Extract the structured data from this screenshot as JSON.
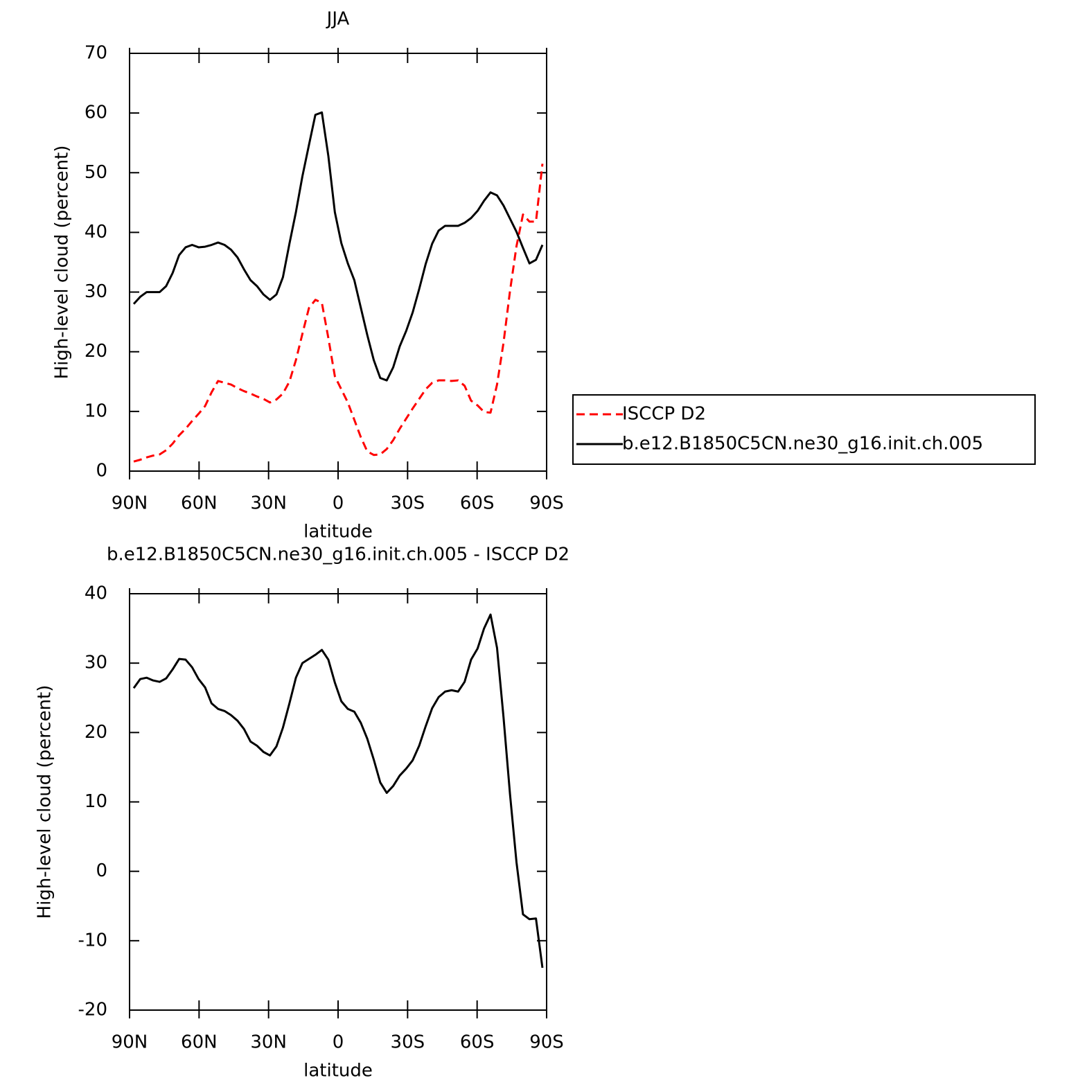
{
  "chart_data": [
    {
      "type": "line",
      "title": "JJA",
      "xlabel": "latitude",
      "ylabel": "High-level cloud (percent)",
      "x": [
        88.2,
        85.4,
        82.6,
        79.8,
        77.0,
        74.2,
        71.4,
        68.6,
        65.8,
        63.0,
        60.2,
        57.4,
        54.6,
        51.8,
        49.0,
        46.2,
        43.4,
        40.6,
        37.8,
        35.0,
        32.2,
        29.4,
        26.6,
        23.8,
        21.0,
        18.2,
        15.4,
        12.6,
        9.8,
        7.0,
        4.2,
        1.4,
        -1.4,
        -4.2,
        -7.0,
        -9.8,
        -12.6,
        -15.4,
        -18.2,
        -21.0,
        -23.8,
        -26.6,
        -29.4,
        -32.2,
        -35.0,
        -37.8,
        -40.6,
        -43.4,
        -46.2,
        -49.0,
        -51.8,
        -54.6,
        -57.4,
        -60.2,
        -63.0,
        -65.8,
        -68.6,
        -71.4,
        -74.2,
        -77.0,
        -79.8,
        -82.6,
        -85.4,
        -88.2
      ],
      "xlim": [
        90,
        -90
      ],
      "xticks": [
        {
          "value": 90,
          "label": "90N"
        },
        {
          "value": 60,
          "label": "60N"
        },
        {
          "value": 30,
          "label": "30N"
        },
        0,
        {
          "value": -30,
          "label": "30S"
        },
        {
          "value": -60,
          "label": "60S"
        },
        {
          "value": -90,
          "label": "90S"
        }
      ],
      "ylim": [
        0,
        70
      ],
      "yticks": [
        0,
        10,
        20,
        30,
        40,
        50,
        60,
        70
      ],
      "legend": "right",
      "series": [
        {
          "name": "ISCCP D2",
          "color": "#ff0000",
          "dashed": true,
          "values": [
            1.6,
            1.9,
            2.3,
            2.6,
            2.8,
            3.5,
            4.6,
            6.0,
            7.1,
            8.4,
            9.6,
            10.9,
            13.2,
            15.1,
            14.8,
            14.5,
            13.9,
            13.4,
            13.0,
            12.5,
            12.1,
            11.5,
            12.0,
            13.0,
            15.0,
            18.6,
            23.0,
            27.3,
            28.7,
            28.2,
            22.3,
            15.9,
            13.7,
            11.5,
            8.6,
            5.7,
            3.3,
            2.7,
            2.8,
            3.7,
            5.2,
            7.1,
            8.8,
            10.5,
            12.1,
            13.7,
            14.8,
            15.2,
            15.2,
            15.1,
            15.2,
            14.3,
            11.8,
            11.0,
            9.9,
            9.8,
            14.5,
            21.5,
            30.2,
            37.7,
            43.0,
            41.8,
            41.8,
            51.5
          ]
        },
        {
          "name": "b.e12.B1850C5CN.ne30_g16.init.ch.005",
          "color": "#000000",
          "dashed": false,
          "values": [
            28.0,
            29.2,
            30.0,
            30.0,
            30.0,
            31.0,
            33.2,
            36.2,
            37.5,
            37.9,
            37.5,
            37.6,
            37.9,
            38.3,
            37.9,
            37.1,
            35.8,
            33.8,
            32.0,
            31.0,
            29.6,
            28.7,
            29.6,
            32.5,
            38.1,
            43.4,
            49.4,
            54.6,
            59.7,
            60.1,
            52.8,
            43.4,
            38.2,
            34.8,
            32.0,
            27.4,
            22.8,
            18.6,
            15.6,
            15.2,
            17.4,
            20.9,
            23.5,
            26.6,
            30.5,
            34.7,
            38.1,
            40.3,
            41.1,
            41.1,
            41.1,
            41.6,
            42.4,
            43.6,
            45.3,
            46.7,
            46.2,
            44.5,
            42.3,
            40.1,
            37.4,
            34.8,
            35.4,
            37.9
          ]
        }
      ]
    },
    {
      "type": "line",
      "title": "b.e12.B1850C5CN.ne30_g16.init.ch.005 - ISCCP D2",
      "xlabel": "latitude",
      "ylabel": "High-level cloud (percent)",
      "x": [
        88.2,
        85.4,
        82.6,
        79.8,
        77.0,
        74.2,
        71.4,
        68.6,
        65.8,
        63.0,
        60.2,
        57.4,
        54.6,
        51.8,
        49.0,
        46.2,
        43.4,
        40.6,
        37.8,
        35.0,
        32.2,
        29.4,
        26.6,
        23.8,
        21.0,
        18.2,
        15.4,
        12.6,
        9.8,
        7.0,
        4.2,
        1.4,
        -1.4,
        -4.2,
        -7.0,
        -9.8,
        -12.6,
        -15.4,
        -18.2,
        -21.0,
        -23.8,
        -26.6,
        -29.4,
        -32.2,
        -35.0,
        -37.8,
        -40.6,
        -43.4,
        -46.2,
        -49.0,
        -51.8,
        -54.6,
        -57.4,
        -60.2,
        -63.0,
        -65.8,
        -68.6,
        -71.4,
        -74.2,
        -77.0,
        -79.8,
        -82.6,
        -85.4,
        -88.2
      ],
      "xlim": [
        90,
        -90
      ],
      "xticks": [
        {
          "value": 90,
          "label": "90N"
        },
        {
          "value": 60,
          "label": "60N"
        },
        {
          "value": 30,
          "label": "30N"
        },
        0,
        {
          "value": -30,
          "label": "30S"
        },
        {
          "value": -60,
          "label": "60S"
        },
        {
          "value": -90,
          "label": "90S"
        }
      ],
      "ylim": [
        -20,
        40
      ],
      "yticks": [
        -20,
        -10,
        0,
        10,
        20,
        30,
        40
      ],
      "series": [
        {
          "color": "#000000",
          "dashed": false,
          "values": [
            26.4,
            27.7,
            27.9,
            27.5,
            27.3,
            27.8,
            29.1,
            30.6,
            30.5,
            29.4,
            27.7,
            26.5,
            24.2,
            23.4,
            23.1,
            22.5,
            21.7,
            20.5,
            18.7,
            18.1,
            17.2,
            16.7,
            18.0,
            20.7,
            24.2,
            27.9,
            30.0,
            30.6,
            31.2,
            31.9,
            30.5,
            27.2,
            24.5,
            23.4,
            23.0,
            21.4,
            19.1,
            16.1,
            12.8,
            11.3,
            12.3,
            13.8,
            14.8,
            16.0,
            18.1,
            20.9,
            23.5,
            25.1,
            25.9,
            26.1,
            25.9,
            27.3,
            30.5,
            32.1,
            35.0,
            37.0,
            32.2,
            22.2,
            11.1,
            1.3,
            -6.2,
            -6.9,
            -6.8,
            -13.9
          ]
        }
      ]
    }
  ]
}
